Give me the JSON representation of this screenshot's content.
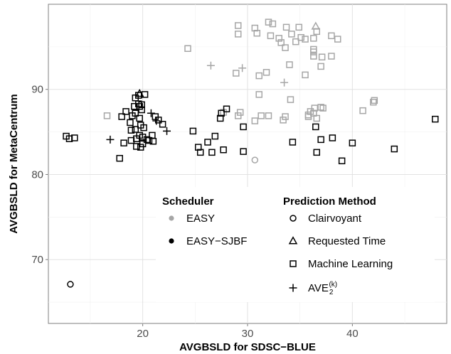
{
  "chart_data": {
    "type": "scatter",
    "xlabel": "AVGBSLD for SDSC−BLUE",
    "ylabel": "AVGBSLD for MetaCentrum",
    "xlim": [
      11,
      49
    ],
    "ylim": [
      62.5,
      100
    ],
    "xticks": [
      20,
      30,
      40
    ],
    "yticks": [
      70,
      80,
      90
    ],
    "grid": true,
    "colors": {
      "EASY": "#a6a6a6",
      "EASY-SJBF": "#000000"
    },
    "legend": {
      "placement": "lower-right inside",
      "scheduler": {
        "title": "Scheduler",
        "entries": [
          {
            "label": "EASY",
            "key": "EASY"
          },
          {
            "label": "EASY−SJBF",
            "key": "EASY-SJBF"
          }
        ]
      },
      "method": {
        "title": "Prediction Method",
        "entries": [
          {
            "label": "Clairvoyant",
            "shape": "circle"
          },
          {
            "label": "Requested Time",
            "shape": "triangle"
          },
          {
            "label": "Machine Learning",
            "shape": "square"
          },
          {
            "label": "AVE",
            "sub": "2",
            "sup": "(k)",
            "shape": "plus"
          }
        ]
      }
    },
    "series": [
      {
        "scheduler": "EASY",
        "method": "Clairvoyant",
        "points": [
          [
            30.7,
            81.7
          ]
        ]
      },
      {
        "scheduler": "EASY",
        "method": "Requested Time",
        "points": [
          [
            36.5,
            97.4
          ]
        ]
      },
      {
        "scheduler": "EASY",
        "method": "AVE",
        "points": [
          [
            26.5,
            92.8
          ],
          [
            29.5,
            92.5
          ],
          [
            33.5,
            90.8
          ]
        ]
      },
      {
        "scheduler": "EASY",
        "method": "Machine Learning",
        "points": [
          [
            16.6,
            86.9
          ],
          [
            24.3,
            94.8
          ],
          [
            27.7,
            87.3
          ],
          [
            29.1,
            97.5
          ],
          [
            29.1,
            96.5
          ],
          [
            28.9,
            91.9
          ],
          [
            29.3,
            87.3
          ],
          [
            29.1,
            86.9
          ],
          [
            30.7,
            97.2
          ],
          [
            30.9,
            96.6
          ],
          [
            31.1,
            91.6
          ],
          [
            31.1,
            89.4
          ],
          [
            30.7,
            86.3
          ],
          [
            31.3,
            86.9
          ],
          [
            32.0,
            97.9
          ],
          [
            32.4,
            97.7
          ],
          [
            32.2,
            96.3
          ],
          [
            31.8,
            92.0
          ],
          [
            32.0,
            86.9
          ],
          [
            33.0,
            96.0
          ],
          [
            33.2,
            95.5
          ],
          [
            33.7,
            97.3
          ],
          [
            33.6,
            94.9
          ],
          [
            33.4,
            86.4
          ],
          [
            33.6,
            86.8
          ],
          [
            34.2,
            96.5
          ],
          [
            34.0,
            92.9
          ],
          [
            34.1,
            88.8
          ],
          [
            34.6,
            95.6
          ],
          [
            35.1,
            96.1
          ],
          [
            34.9,
            97.3
          ],
          [
            35.5,
            95.9
          ],
          [
            35.5,
            91.7
          ],
          [
            35.8,
            87.0
          ],
          [
            35.8,
            86.8
          ],
          [
            36.0,
            87.4
          ],
          [
            36.3,
            96.0
          ],
          [
            36.3,
            94.7
          ],
          [
            36.3,
            94.4
          ],
          [
            36.3,
            93.9
          ],
          [
            36.3,
            87.2
          ],
          [
            36.4,
            87.8
          ],
          [
            36.6,
            86.6
          ],
          [
            36.6,
            96.8
          ],
          [
            37.0,
            92.7
          ],
          [
            37.0,
            87.9
          ],
          [
            37.2,
            87.8
          ],
          [
            37.1,
            93.8
          ],
          [
            38.0,
            96.3
          ],
          [
            38.0,
            93.9
          ],
          [
            38.6,
            95.9
          ],
          [
            41.0,
            87.5
          ],
          [
            42.0,
            88.5
          ],
          [
            42.1,
            88.7
          ]
        ]
      },
      {
        "scheduler": "EASY-SJBF",
        "method": "Clairvoyant",
        "points": [
          [
            13.1,
            67.1
          ]
        ]
      },
      {
        "scheduler": "EASY-SJBF",
        "method": "Requested Time",
        "points": [
          [
            19.7,
            89.5
          ]
        ]
      },
      {
        "scheduler": "EASY-SJBF",
        "method": "AVE",
        "points": [
          [
            16.9,
            84.1
          ],
          [
            20.8,
            87.2
          ],
          [
            21.3,
            86.3
          ],
          [
            22.3,
            85.1
          ]
        ]
      },
      {
        "scheduler": "EASY-SJBF",
        "method": "Machine Learning",
        "points": [
          [
            12.7,
            84.5
          ],
          [
            13.0,
            84.2
          ],
          [
            13.5,
            84.3
          ],
          [
            17.8,
            81.9
          ],
          [
            18.0,
            86.8
          ],
          [
            18.2,
            83.7
          ],
          [
            18.4,
            87.4
          ],
          [
            18.9,
            85.2
          ],
          [
            18.8,
            86.1
          ],
          [
            18.9,
            84.0
          ],
          [
            19.0,
            86.9
          ],
          [
            19.3,
            89.0
          ],
          [
            19.2,
            88.0
          ],
          [
            19.3,
            87.2
          ],
          [
            19.3,
            85.3
          ],
          [
            19.4,
            84.2
          ],
          [
            19.4,
            83.3
          ],
          [
            19.6,
            89.3
          ],
          [
            19.6,
            88.3
          ],
          [
            19.7,
            86.6
          ],
          [
            19.8,
            85.8
          ],
          [
            19.7,
            84.6
          ],
          [
            19.8,
            83.2
          ],
          [
            19.7,
            88.0
          ],
          [
            19.9,
            87.6
          ],
          [
            19.9,
            88.2
          ],
          [
            20.0,
            83.6
          ],
          [
            20.1,
            85.5
          ],
          [
            20.2,
            89.4
          ],
          [
            20.0,
            84.4
          ],
          [
            20.4,
            84.1
          ],
          [
            20.6,
            84.0
          ],
          [
            20.9,
            84.6
          ],
          [
            21.0,
            83.9
          ],
          [
            21.2,
            86.8
          ],
          [
            21.5,
            86.4
          ],
          [
            21.9,
            85.9
          ],
          [
            24.8,
            85.1
          ],
          [
            25.3,
            83.2
          ],
          [
            25.5,
            82.6
          ],
          [
            26.2,
            83.8
          ],
          [
            26.6,
            82.6
          ],
          [
            26.9,
            84.5
          ],
          [
            27.4,
            86.6
          ],
          [
            27.5,
            87.2
          ],
          [
            27.7,
            82.9
          ],
          [
            28.0,
            87.7
          ],
          [
            29.6,
            85.6
          ],
          [
            29.6,
            82.7
          ],
          [
            34.3,
            83.8
          ],
          [
            36.5,
            85.6
          ],
          [
            36.6,
            82.6
          ],
          [
            37.0,
            84.1
          ],
          [
            38.1,
            84.3
          ],
          [
            39.0,
            81.6
          ],
          [
            40.0,
            83.7
          ],
          [
            44.0,
            83.0
          ],
          [
            47.9,
            86.5
          ]
        ]
      }
    ]
  }
}
